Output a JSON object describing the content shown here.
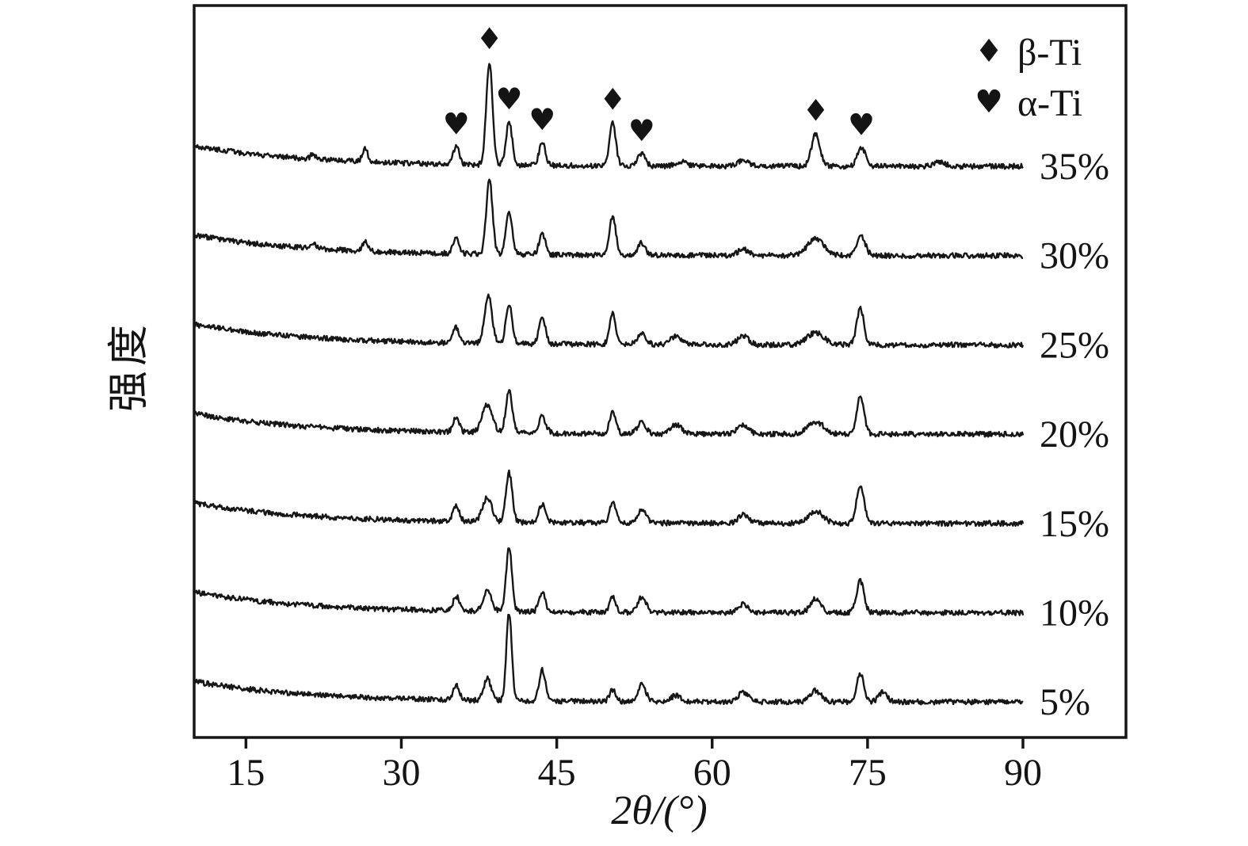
{
  "chart_data": {
    "type": "line",
    "title": "",
    "xlabel": "2θ/(°)",
    "ylabel": "强度",
    "x_ticks": [
      15,
      30,
      45,
      60,
      75,
      90
    ],
    "x_range": [
      10,
      100
    ],
    "grid": false,
    "legend_position": "top-right",
    "legend": [
      {
        "symbol": "♦",
        "label": "β-Ti"
      },
      {
        "symbol": "♥",
        "label": "α-Ti"
      }
    ],
    "series_labels": [
      "35%",
      "30%",
      "25%",
      "20%",
      "15%",
      "10%",
      "5%"
    ],
    "peak_annotations": [
      {
        "x": 35.3,
        "symbol": "♥",
        "phase": "α-Ti"
      },
      {
        "x": 38.5,
        "symbol": "♦",
        "phase": "β-Ti"
      },
      {
        "x": 40.4,
        "symbol": "♥",
        "phase": "α-Ti"
      },
      {
        "x": 43.6,
        "symbol": "♥",
        "phase": "α-Ti"
      },
      {
        "x": 50.4,
        "symbol": "♦",
        "phase": "β-Ti"
      },
      {
        "x": 53.2,
        "symbol": "♥",
        "phase": "α-Ti"
      },
      {
        "x": 70.0,
        "symbol": "♦",
        "phase": "β-Ti"
      },
      {
        "x": 74.4,
        "symbol": "♥",
        "phase": "α-Ti"
      }
    ],
    "background": {
      "amplitude": 0.2,
      "decay_deg": 11
    },
    "noise_amplitude": 0.05,
    "peak_format": [
      "two_theta_deg",
      "relative_intensity",
      "sigma_deg"
    ],
    "series": [
      {
        "name": "35%",
        "peaks": [
          [
            21.5,
            0.05,
            0.25
          ],
          [
            26.5,
            0.13,
            0.25
          ],
          [
            35.3,
            0.17,
            0.3
          ],
          [
            38.5,
            1.0,
            0.3
          ],
          [
            40.4,
            0.42,
            0.3
          ],
          [
            43.6,
            0.22,
            0.3
          ],
          [
            50.4,
            0.42,
            0.3
          ],
          [
            53.2,
            0.12,
            0.35
          ],
          [
            57.0,
            0.05,
            0.5
          ],
          [
            63.0,
            0.06,
            0.5
          ],
          [
            70.0,
            0.32,
            0.4
          ],
          [
            74.4,
            0.18,
            0.4
          ],
          [
            82.0,
            0.04,
            0.5
          ]
        ]
      },
      {
        "name": "30%",
        "peaks": [
          [
            21.5,
            0.05,
            0.25
          ],
          [
            26.5,
            0.1,
            0.25
          ],
          [
            35.3,
            0.14,
            0.3
          ],
          [
            38.5,
            0.72,
            0.3
          ],
          [
            40.4,
            0.4,
            0.3
          ],
          [
            43.6,
            0.2,
            0.3
          ],
          [
            50.4,
            0.38,
            0.3
          ],
          [
            53.2,
            0.12,
            0.35
          ],
          [
            63.0,
            0.06,
            0.5
          ],
          [
            70.0,
            0.16,
            0.8
          ],
          [
            74.4,
            0.18,
            0.4
          ]
        ]
      },
      {
        "name": "25%",
        "peaks": [
          [
            35.3,
            0.15,
            0.3
          ],
          [
            38.4,
            0.46,
            0.35
          ],
          [
            40.4,
            0.38,
            0.3
          ],
          [
            43.6,
            0.26,
            0.3
          ],
          [
            50.4,
            0.3,
            0.3
          ],
          [
            53.2,
            0.12,
            0.4
          ],
          [
            56.5,
            0.08,
            0.5
          ],
          [
            63.0,
            0.09,
            0.5
          ],
          [
            70.0,
            0.12,
            0.8
          ],
          [
            74.3,
            0.35,
            0.35
          ]
        ]
      },
      {
        "name": "20%",
        "peaks": [
          [
            35.3,
            0.14,
            0.3
          ],
          [
            38.3,
            0.27,
            0.5
          ],
          [
            40.4,
            0.42,
            0.3
          ],
          [
            43.6,
            0.16,
            0.35
          ],
          [
            50.4,
            0.22,
            0.3
          ],
          [
            53.2,
            0.12,
            0.4
          ],
          [
            56.5,
            0.09,
            0.5
          ],
          [
            63.0,
            0.09,
            0.5
          ],
          [
            70.0,
            0.12,
            0.8
          ],
          [
            74.3,
            0.37,
            0.35
          ]
        ]
      },
      {
        "name": "15%",
        "peaks": [
          [
            35.3,
            0.15,
            0.3
          ],
          [
            38.3,
            0.24,
            0.45
          ],
          [
            40.4,
            0.48,
            0.3
          ],
          [
            43.6,
            0.17,
            0.35
          ],
          [
            50.4,
            0.19,
            0.3
          ],
          [
            53.2,
            0.13,
            0.4
          ],
          [
            63.0,
            0.08,
            0.5
          ],
          [
            70.0,
            0.12,
            0.7
          ],
          [
            74.3,
            0.38,
            0.35
          ]
        ]
      },
      {
        "name": "10%",
        "peaks": [
          [
            35.3,
            0.14,
            0.3
          ],
          [
            38.3,
            0.2,
            0.4
          ],
          [
            40.4,
            0.62,
            0.28
          ],
          [
            43.6,
            0.19,
            0.3
          ],
          [
            50.4,
            0.14,
            0.3
          ],
          [
            53.2,
            0.15,
            0.4
          ],
          [
            63.0,
            0.08,
            0.5
          ],
          [
            70.0,
            0.14,
            0.5
          ],
          [
            74.3,
            0.31,
            0.35
          ]
        ]
      },
      {
        "name": "5%",
        "peaks": [
          [
            35.3,
            0.15,
            0.3
          ],
          [
            38.3,
            0.21,
            0.35
          ],
          [
            40.4,
            0.85,
            0.26
          ],
          [
            43.6,
            0.3,
            0.3
          ],
          [
            50.4,
            0.11,
            0.3
          ],
          [
            53.2,
            0.16,
            0.4
          ],
          [
            56.5,
            0.06,
            0.5
          ],
          [
            63.0,
            0.09,
            0.5
          ],
          [
            70.0,
            0.11,
            0.5
          ],
          [
            74.3,
            0.27,
            0.35
          ],
          [
            76.5,
            0.1,
            0.4
          ]
        ]
      }
    ]
  }
}
